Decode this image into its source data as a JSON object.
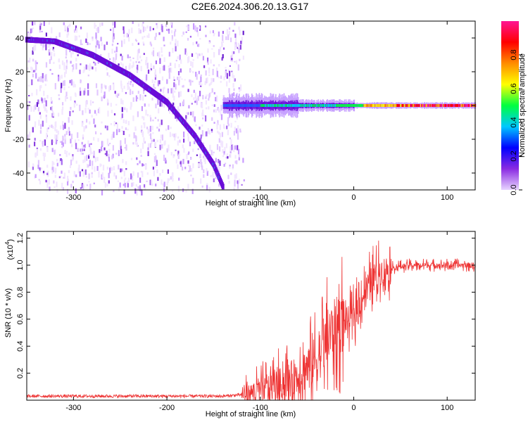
{
  "title": "C2E6.2024.306.20.13.G17",
  "chart_data": [
    {
      "type": "heatmap",
      "xlabel": "Height of straight line (km)",
      "ylabel": "Frequency (Hz)",
      "xlim": [
        -350,
        130
      ],
      "ylim": [
        -50,
        50
      ],
      "xticks": [
        -300,
        -200,
        -100,
        0,
        100
      ],
      "yticks": [
        -40,
        -20,
        0,
        20,
        40
      ],
      "colorbar": {
        "label": "Normalized spectral amplitude",
        "range": [
          0,
          1
        ],
        "ticks": [
          "0.0",
          "0.2",
          "0.4",
          "0.6",
          "0.8"
        ],
        "colors": [
          "#e8d4ff",
          "#8a2be2",
          "#0000ff",
          "#00c8ff",
          "#00ff40",
          "#ffff00",
          "#ff8c00",
          "#ff0000",
          "#ff1493"
        ]
      },
      "features": {
        "noise_region_x": [
          -350,
          -118
        ],
        "arc": {
          "x": [
            -350,
            -320,
            -280,
            -240,
            -200,
            -170,
            -150,
            -140
          ],
          "frequency": [
            39,
            38,
            30,
            18,
            2,
            -18,
            -35,
            -48
          ]
        },
        "carrier": {
          "x": [
            -140,
            -100,
            -50,
            0,
            50,
            100,
            130
          ],
          "frequency": [
            0,
            0,
            0,
            0,
            0,
            0,
            0
          ]
        }
      }
    },
    {
      "type": "line",
      "xlabel": "Height of straight line (km)",
      "ylabel": "SNR (10 * v/v)",
      "yscale_label": "(x10",
      "yscale_exp": "4",
      "xlim": [
        -350,
        130
      ],
      "ylim": [
        0,
        1.25
      ],
      "xticks": [
        -300,
        -200,
        -100,
        0,
        100
      ],
      "yticks": [
        "0.2",
        "0.4",
        "0.6",
        "0.8",
        "1.0",
        "1.2"
      ],
      "color": "#ee3333",
      "series": [
        {
          "x": [
            -350,
            -300,
            -250,
            -200,
            -160,
            -140,
            -120,
            -100,
            -80,
            -60,
            -40,
            -30,
            -20,
            -10,
            0,
            10,
            20,
            30,
            40,
            50,
            60,
            70,
            80,
            90,
            100,
            110,
            120,
            130
          ],
          "values": [
            0.03,
            0.03,
            0.03,
            0.03,
            0.03,
            0.03,
            0.04,
            0.08,
            0.12,
            0.18,
            0.3,
            0.42,
            0.55,
            0.58,
            0.62,
            0.78,
            0.9,
            0.96,
            0.98,
            0.99,
            1.0,
            1.0,
            1.0,
            1.0,
            1.0,
            1.0,
            1.0,
            1.0
          ]
        }
      ]
    }
  ]
}
